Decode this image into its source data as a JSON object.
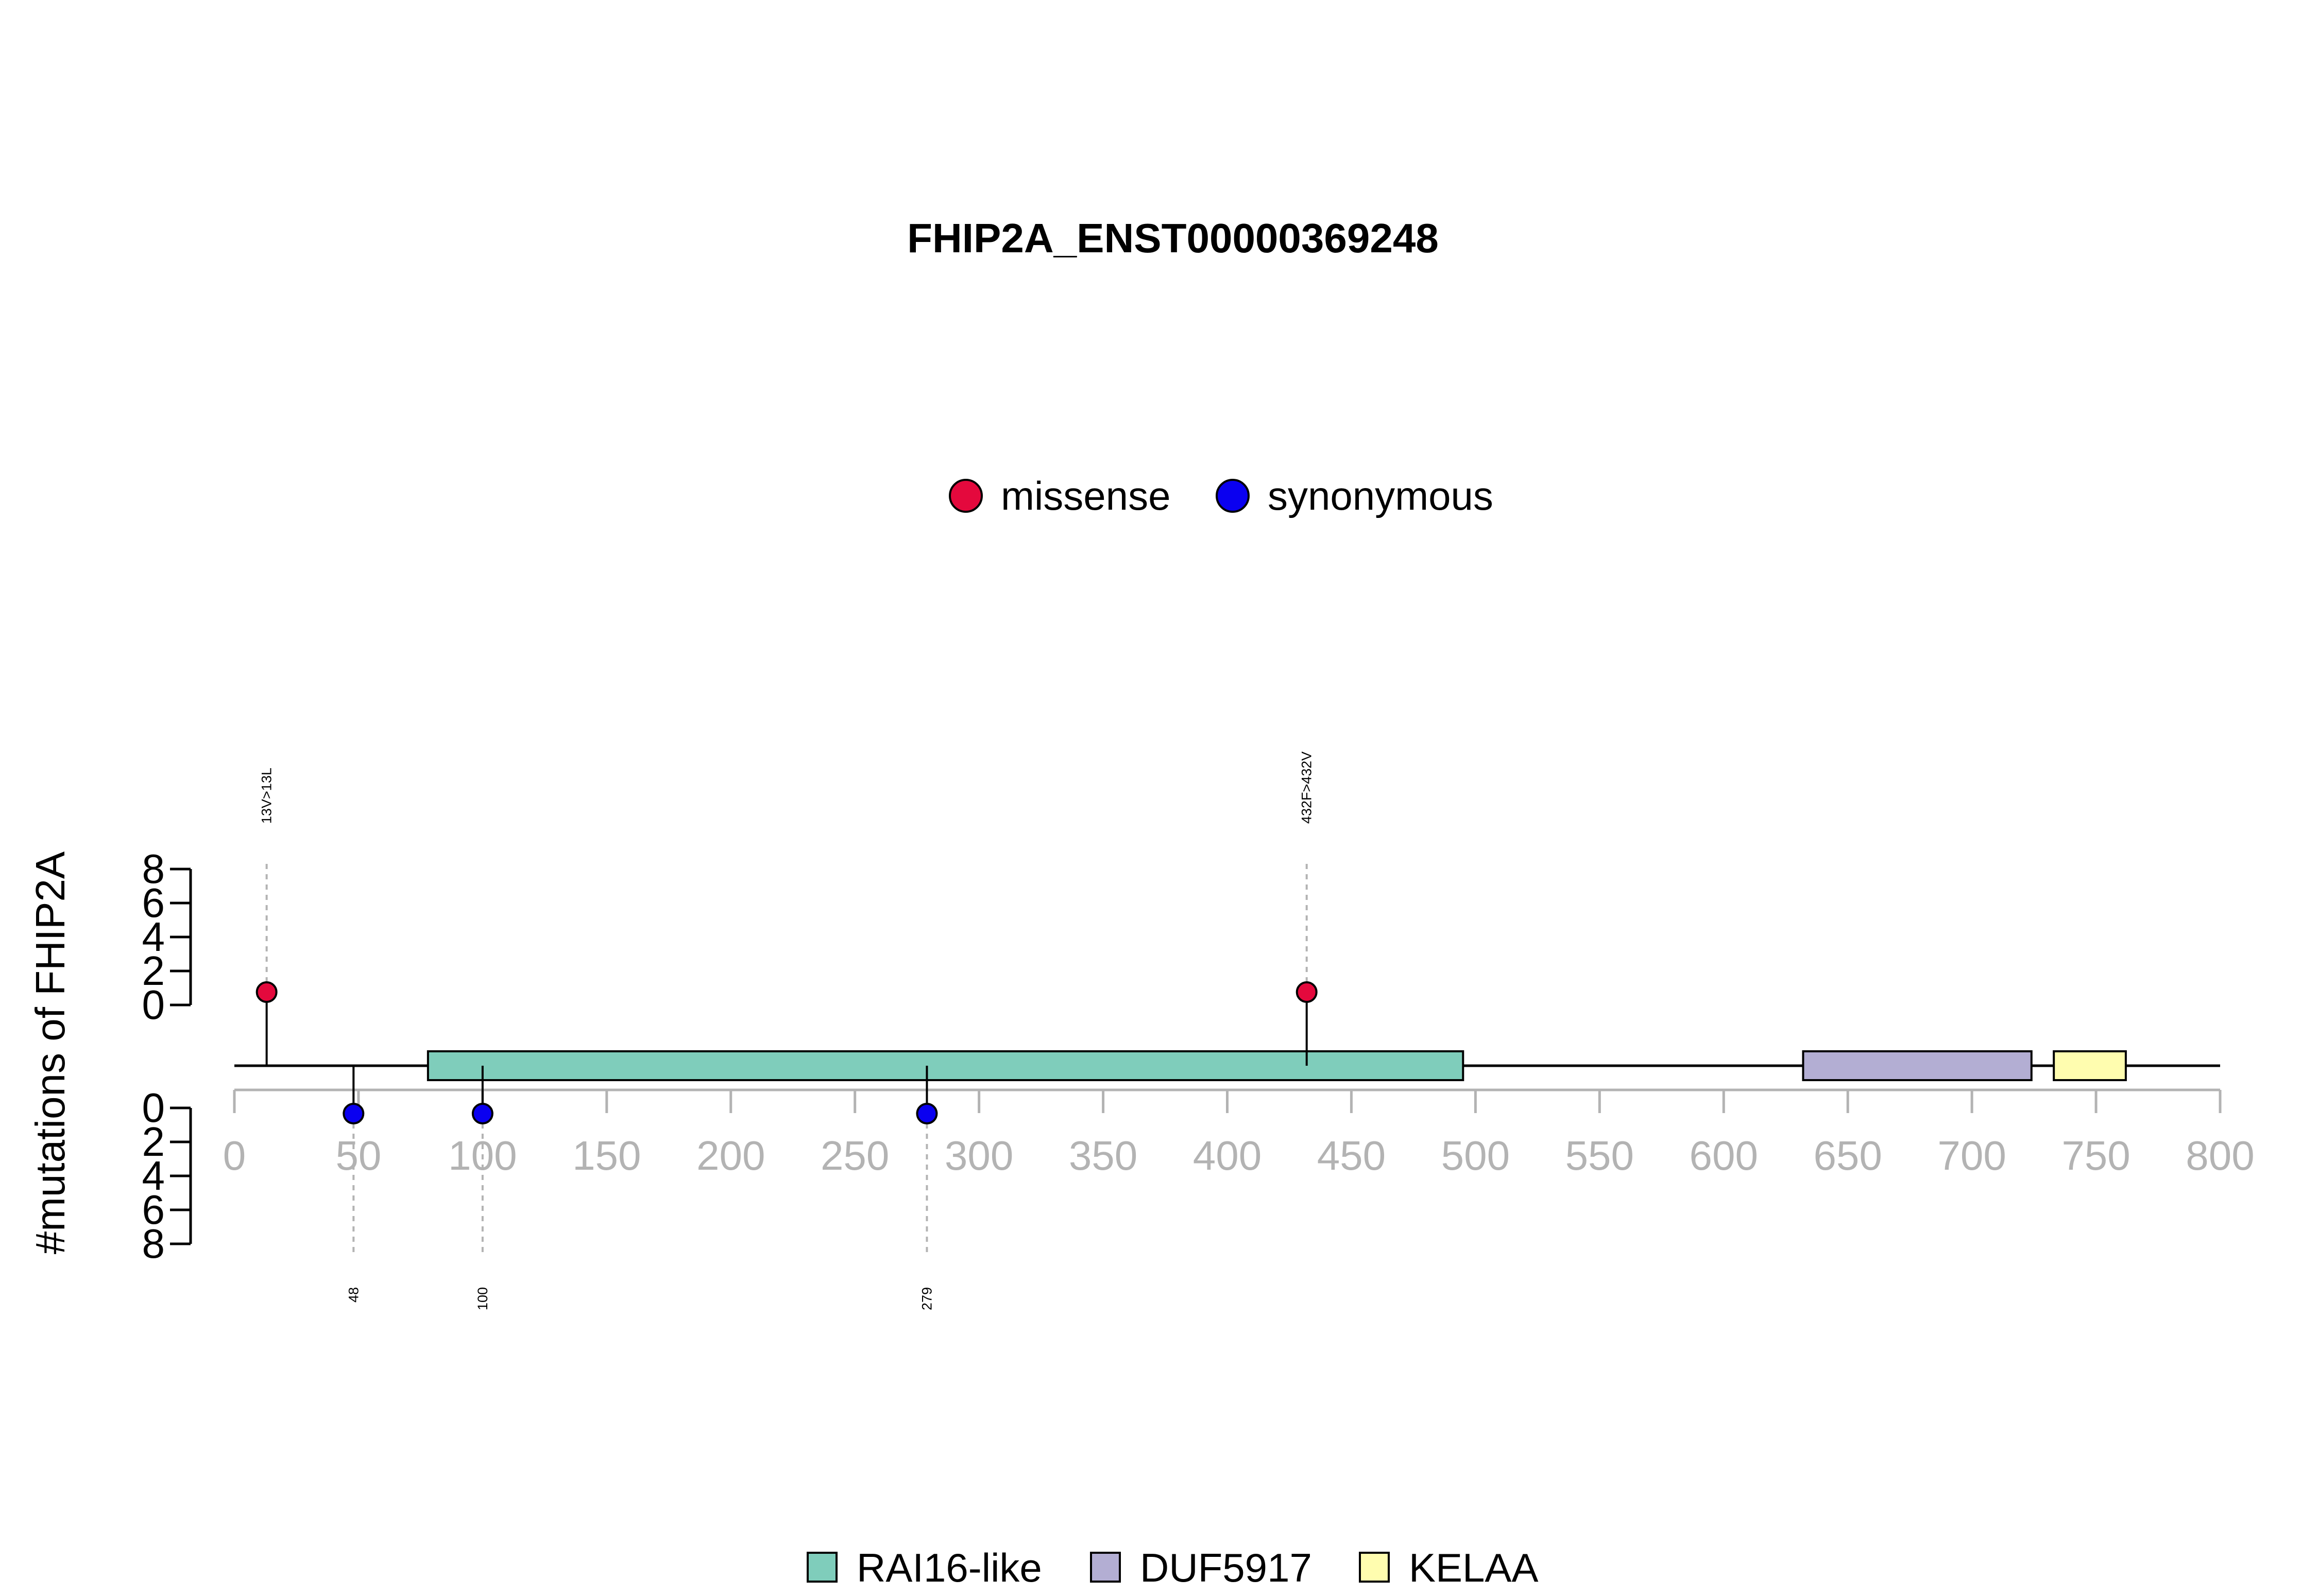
{
  "chart_data": {
    "type": "lollipop",
    "title": "FHIP2A_ENST00000369248",
    "ylabel": "#mutations of FHIP2A",
    "xlim": [
      0,
      800
    ],
    "x_ticks": [
      0,
      50,
      100,
      150,
      200,
      250,
      300,
      350,
      400,
      450,
      500,
      550,
      600,
      650,
      700,
      750,
      800
    ],
    "y_ticks_upper": [
      0,
      2,
      4,
      6,
      8
    ],
    "y_ticks_lower": [
      0,
      2,
      4,
      6,
      8
    ],
    "mutation_legend": [
      {
        "name": "missense",
        "color": "#E4093D"
      },
      {
        "name": "synonymous",
        "color": "#0A00F0"
      }
    ],
    "mutations": [
      {
        "position": 13,
        "count": 1,
        "type": "missense",
        "label": "13V>13L",
        "side": "top"
      },
      {
        "position": 432,
        "count": 1,
        "type": "missense",
        "label": "432F>432V",
        "side": "top"
      },
      {
        "position": 48,
        "count": 1,
        "type": "synonymous",
        "label": "48",
        "side": "bottom"
      },
      {
        "position": 100,
        "count": 1,
        "type": "synonymous",
        "label": "100",
        "side": "bottom"
      },
      {
        "position": 279,
        "count": 1,
        "type": "synonymous",
        "label": "279",
        "side": "bottom"
      }
    ],
    "domains": [
      {
        "name": "RAI16-like",
        "start": 78,
        "end": 495,
        "color": "#7FCDBB"
      },
      {
        "name": "DUF5917",
        "start": 632,
        "end": 724,
        "color": "#B3AED3"
      },
      {
        "name": "KELAA",
        "start": 733,
        "end": 762,
        "color": "#FFFDAF"
      }
    ],
    "domain_legend": [
      "RAI16-like",
      "DUF5917",
      "KELAA"
    ]
  }
}
